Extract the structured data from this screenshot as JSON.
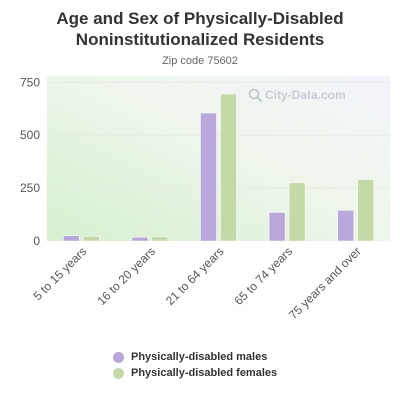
{
  "chart_data": {
    "type": "bar",
    "title": "Age and Sex of Physically-Disabled Noninstitutionalized Residents",
    "subtitle": "Zip code 75602",
    "categories": [
      "5 to 15 years",
      "16 to 20 years",
      "21 to 64 years",
      "65 to 74 years",
      "75 years and over"
    ],
    "series": [
      {
        "name": "Physically-disabled males",
        "values": [
          25,
          18,
          605,
          135,
          145
        ],
        "color": "#b9a7db"
      },
      {
        "name": "Physically-disabled females",
        "values": [
          22,
          20,
          695,
          275,
          290
        ],
        "color": "#c5d9a6"
      }
    ],
    "y_ticks": [
      0,
      250,
      500,
      750
    ],
    "ylim": [
      0,
      780
    ],
    "grid": true,
    "legend": "bottom",
    "watermark": "City-Data.com"
  }
}
